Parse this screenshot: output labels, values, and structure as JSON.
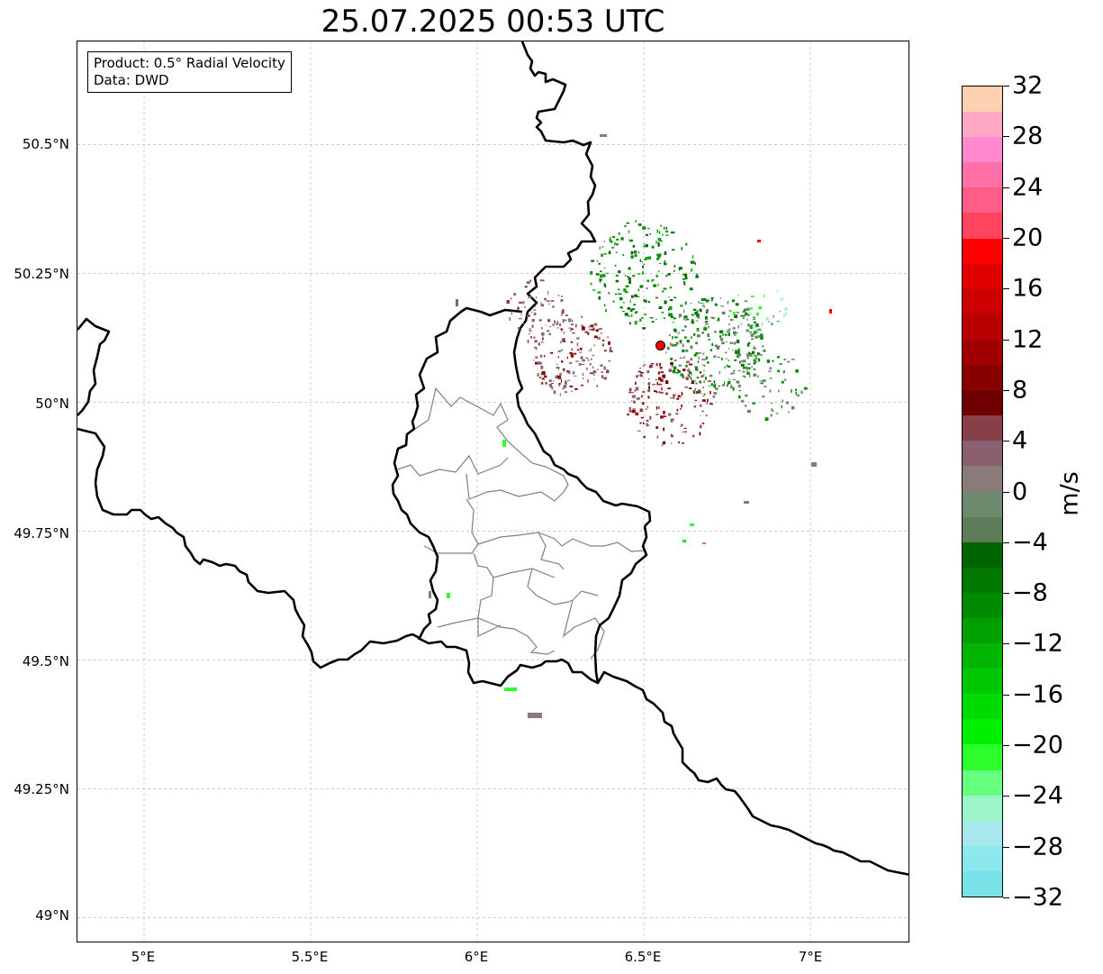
{
  "title": "25.07.2025 00:53 UTC",
  "info_box": {
    "line1": "Product: 0.5° Radial Velocity",
    "line2": "Data: DWD"
  },
  "axes": {
    "lon_ticks": [
      "5°E",
      "5.5°E",
      "6°E",
      "6.5°E",
      "7°E"
    ],
    "lat_ticks": [
      "50.5°N",
      "50.25°N",
      "50°N",
      "49.75°N",
      "49.5°N",
      "49.25°N",
      "49°N"
    ]
  },
  "map_extent": {
    "lon_min": 4.8,
    "lon_max": 7.3,
    "lat_min": 48.95,
    "lat_max": 50.7
  },
  "radar_site": {
    "lon": 6.55,
    "lat": 50.11,
    "color": "#ff0000"
  },
  "colorbar": {
    "unit": "m/s",
    "min": -32,
    "max": 32,
    "tick_labels": [
      "32",
      "28",
      "24",
      "20",
      "16",
      "12",
      "8",
      "4",
      "0",
      "−4",
      "−8",
      "−12",
      "−16",
      "−20",
      "−24",
      "−28",
      "−32"
    ],
    "colors_top_to_bottom": [
      "#ffd0b0",
      "#ffa8c4",
      "#ff88d0",
      "#ff70a8",
      "#ff5c88",
      "#ff4460",
      "#ff0000",
      "#e00000",
      "#cc0000",
      "#b80000",
      "#a00000",
      "#880000",
      "#6e0000",
      "#884048",
      "#8a6070",
      "#8a7a78",
      "#6e8a6e",
      "#5c7c5a",
      "#006400",
      "#007800",
      "#008a00",
      "#00a000",
      "#00b400",
      "#00c800",
      "#00dc00",
      "#00f000",
      "#2cff2c",
      "#66ff80",
      "#9cf5c8",
      "#a8e8ec",
      "#8ce8ec",
      "#78e2e8"
    ]
  },
  "colors": {
    "border_line": "#000000",
    "admin_line": "#808080",
    "grid_line": "#bbbbbb"
  }
}
